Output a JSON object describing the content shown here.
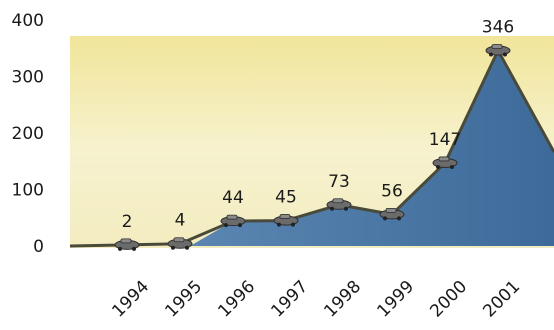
{
  "chart_data": {
    "type": "area",
    "title": "",
    "xlabel": "",
    "ylabel": "",
    "ylim": [
      0,
      400
    ],
    "yticks": [
      0,
      100,
      200,
      300,
      400
    ],
    "categories": [
      "1994",
      "1995",
      "1996",
      "1997",
      "1998",
      "1999",
      "2000",
      "2001"
    ],
    "values": [
      2,
      4,
      44,
      45,
      73,
      56,
      147,
      346
    ],
    "data_labels": [
      "2",
      "4",
      "44",
      "45",
      "73",
      "56",
      "147",
      "346"
    ],
    "grid": false,
    "legend": "none",
    "colors": {
      "background_band": "#f3ecb4",
      "area_fill": "#4a78a6",
      "line": "#4a4a3a",
      "marker": "#555555"
    }
  }
}
